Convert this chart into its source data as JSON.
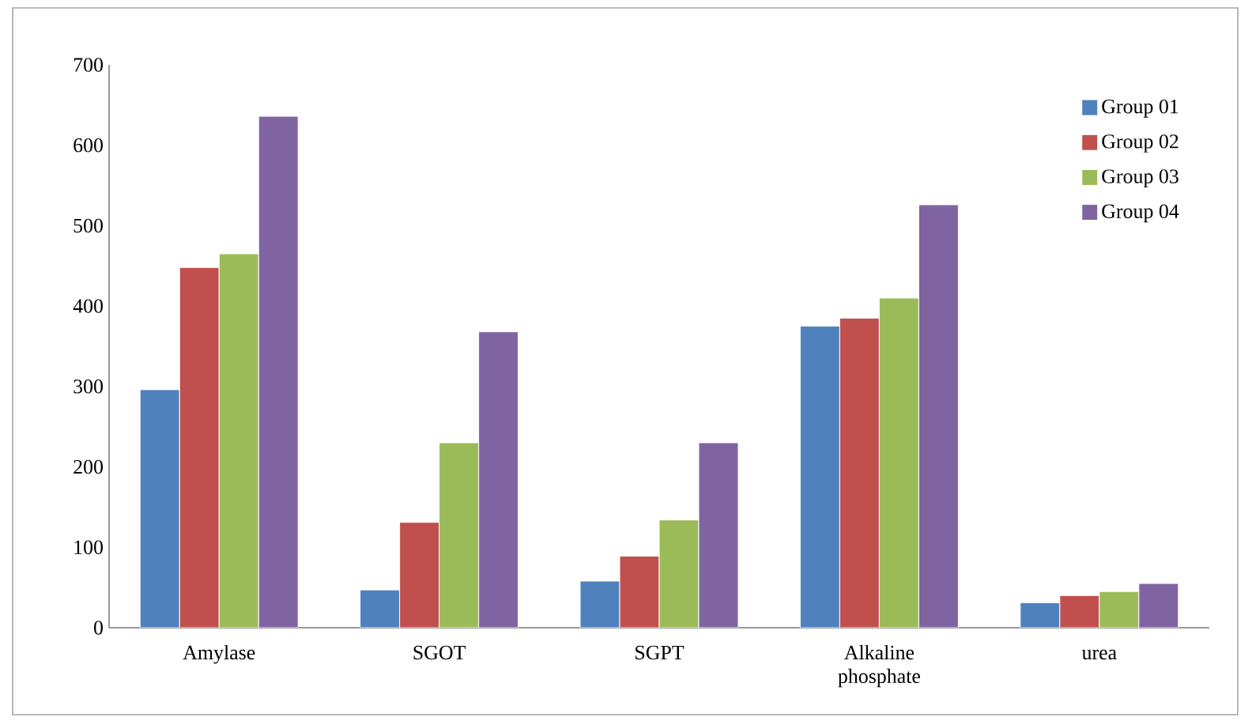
{
  "chart_data": {
    "type": "bar",
    "categories": [
      "Amylase",
      "SGOT",
      "SGPT",
      "Alkaline phosphate",
      "urea"
    ],
    "series": [
      {
        "name": "Group 01",
        "color": "#4f81bd",
        "values": [
          296,
          47,
          58,
          375,
          31
        ]
      },
      {
        "name": "Group 02",
        "color": "#c0504d",
        "values": [
          448,
          131,
          89,
          385,
          40
        ]
      },
      {
        "name": "Group 03",
        "color": "#9bbb59",
        "values": [
          465,
          230,
          134,
          410,
          45
        ]
      },
      {
        "name": "Group 04",
        "color": "#8064a2",
        "values": [
          636,
          368,
          230,
          526,
          55
        ]
      }
    ],
    "ylim": [
      0,
      700
    ],
    "yticks": [
      0,
      100,
      200,
      300,
      400,
      500,
      600,
      700
    ],
    "grid": false,
    "legend": "top right"
  }
}
